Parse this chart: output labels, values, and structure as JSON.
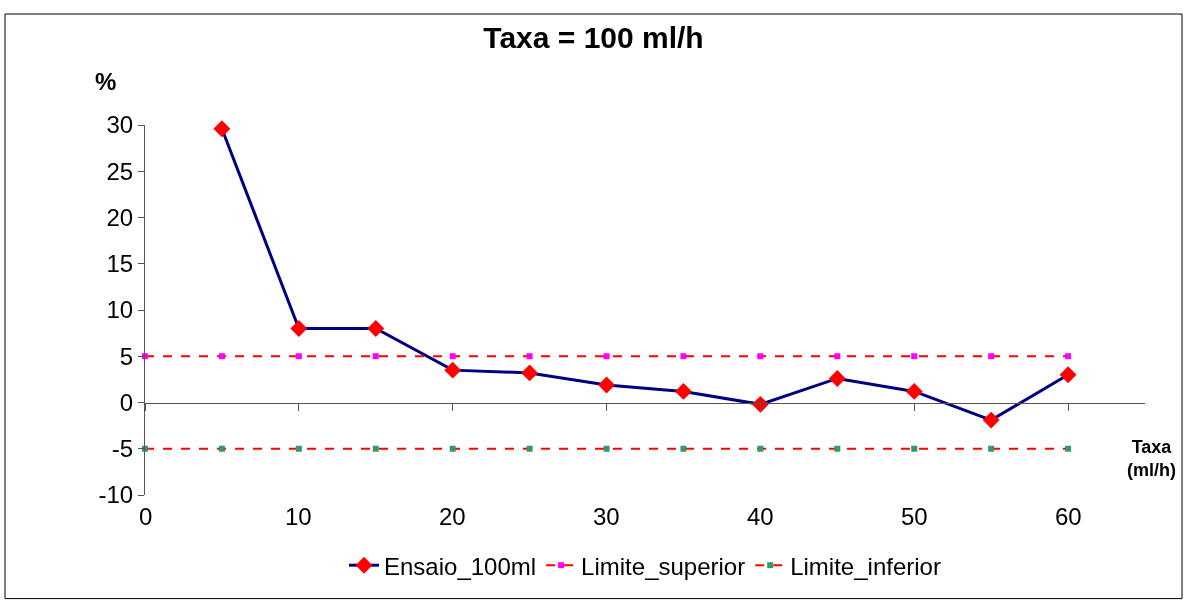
{
  "chart_data": {
    "type": "line",
    "title": "Taxa = 100 ml/h",
    "ylabel": "%",
    "xlabel": "Taxa (ml/h)",
    "x": [
      0,
      5,
      10,
      15,
      20,
      25,
      30,
      35,
      40,
      45,
      50,
      55,
      60
    ],
    "xlim": [
      0,
      65
    ],
    "xticks": [
      0,
      10,
      20,
      30,
      40,
      50,
      60
    ],
    "ylim": [
      -10,
      30
    ],
    "yticks": [
      -10,
      -5,
      0,
      5,
      10,
      15,
      20,
      25,
      30
    ],
    "legend": "bottom",
    "series": [
      {
        "name": "Ensaio_100ml",
        "color": "#000080",
        "colors": [
          "#ff0000",
          "#ff0000",
          "#ff0000",
          "#ff0000",
          "#ff0000",
          "#ff0000",
          "#ff0000",
          "#ff0000",
          "#ff0000",
          "#ff0000",
          "#ff0000",
          "#ff0000",
          "#ff0000"
        ],
        "marker": "diamond",
        "line_style": "solid",
        "values": [
          null,
          29.6,
          8.0,
          8.0,
          3.5,
          3.2,
          1.9,
          1.2,
          -0.2,
          2.6,
          1.2,
          -1.9,
          3.0
        ]
      },
      {
        "name": "Limite_superior",
        "color": "#ff0000",
        "colors": [
          "#ff00ff",
          "#ff00ff",
          "#ff00ff",
          "#ff00ff",
          "#ff00ff",
          "#ff00ff",
          "#ff00ff",
          "#ff00ff",
          "#ff00ff",
          "#ff00ff",
          "#ff00ff",
          "#ff00ff",
          "#ff00ff"
        ],
        "marker": "square",
        "line_style": "dashed",
        "values": [
          5,
          5,
          5,
          5,
          5,
          5,
          5,
          5,
          5,
          5,
          5,
          5,
          5
        ]
      },
      {
        "name": "Limite_inferior",
        "color": "#ff0000",
        "colors": [
          "#339966",
          "#339966",
          "#339966",
          "#339966",
          "#339966",
          "#339966",
          "#339966",
          "#339966",
          "#339966",
          "#339966",
          "#339966",
          "#339966",
          "#339966"
        ],
        "marker": "square",
        "line_style": "dashed",
        "values": [
          -5,
          -5,
          -5,
          -5,
          -5,
          -5,
          -5,
          -5,
          -5,
          -5,
          -5,
          -5,
          -5
        ]
      }
    ]
  }
}
